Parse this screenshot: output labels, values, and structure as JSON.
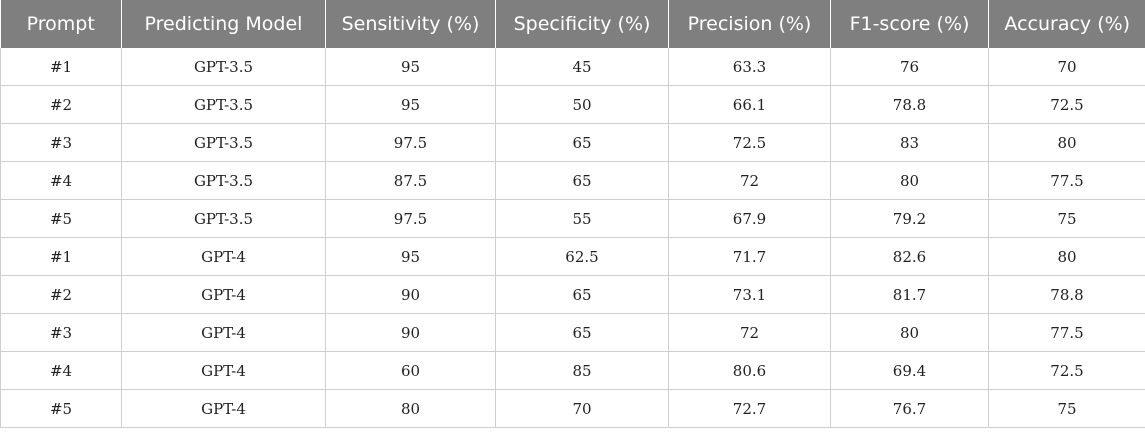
{
  "table": {
    "headers": [
      "Prompt",
      "Predicting Model",
      "Sensitivity (%)",
      "Specificity (%)",
      "Precision (%)",
      "F1-score (%)",
      "Accuracy (%)"
    ],
    "rows": [
      [
        "#1",
        "GPT-3.5",
        "95",
        "45",
        "63.3",
        "76",
        "70"
      ],
      [
        "#2",
        "GPT-3.5",
        "95",
        "50",
        "66.1",
        "78.8",
        "72.5"
      ],
      [
        "#3",
        "GPT-3.5",
        "97.5",
        "65",
        "72.5",
        "83",
        "80"
      ],
      [
        "#4",
        "GPT-3.5",
        "87.5",
        "65",
        "72",
        "80",
        "77.5"
      ],
      [
        "#5",
        "GPT-3.5",
        "97.5",
        "55",
        "67.9",
        "79.2",
        "75"
      ],
      [
        "#1",
        "GPT-4",
        "95",
        "62.5",
        "71.7",
        "82.6",
        "80"
      ],
      [
        "#2",
        "GPT-4",
        "90",
        "65",
        "73.1",
        "81.7",
        "78.8"
      ],
      [
        "#3",
        "GPT-4",
        "90",
        "65",
        "72",
        "80",
        "77.5"
      ],
      [
        "#4",
        "GPT-4",
        "60",
        "85",
        "80.6",
        "69.4",
        "72.5"
      ],
      [
        "#5",
        "GPT-4",
        "80",
        "70",
        "72.7",
        "76.7",
        "75"
      ]
    ]
  }
}
